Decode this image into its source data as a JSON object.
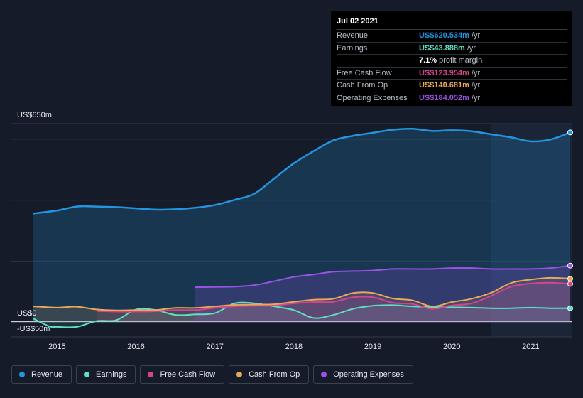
{
  "tooltip": {
    "date": "Jul 02 2021",
    "rows": [
      {
        "label": "Revenue",
        "value": "US$620.534m",
        "unit": "/yr",
        "color": "#2394df"
      },
      {
        "label": "Earnings",
        "value": "US$43.888m",
        "unit": "/yr",
        "color": "#5ee0c6"
      },
      {
        "label": "",
        "value": "7.1%",
        "unit": "profit margin",
        "color": "#ffffff"
      },
      {
        "label": "Free Cash Flow",
        "value": "US$123.954m",
        "unit": "/yr",
        "color": "#d3468c"
      },
      {
        "label": "Cash From Op",
        "value": "US$140.681m",
        "unit": "/yr",
        "color": "#e8a857"
      },
      {
        "label": "Operating Expenses",
        "value": "US$184.052m",
        "unit": "/yr",
        "color": "#9b52e8"
      }
    ]
  },
  "y_axis": {
    "top_label": "US$650m",
    "zero_label": "US$0",
    "bottom_label": "-US$50m"
  },
  "legend": [
    {
      "label": "Revenue",
      "color": "#2394df"
    },
    {
      "label": "Earnings",
      "color": "#5ee0c6"
    },
    {
      "label": "Free Cash Flow",
      "color": "#d3468c"
    },
    {
      "label": "Cash From Op",
      "color": "#e8a857"
    },
    {
      "label": "Operating Expenses",
      "color": "#9b52e8"
    }
  ],
  "chart_data": {
    "type": "area",
    "ylim": [
      -50,
      650
    ],
    "x_ticks": [
      "2015",
      "2016",
      "2017",
      "2018",
      "2019",
      "2020",
      "2021"
    ],
    "highlight_start": 2020.5,
    "series": [
      {
        "name": "Revenue",
        "color": "#2394df",
        "points": [
          [
            2014.7,
            355
          ],
          [
            2015.0,
            365
          ],
          [
            2015.25,
            378
          ],
          [
            2015.5,
            378
          ],
          [
            2015.75,
            376
          ],
          [
            2016.0,
            372
          ],
          [
            2016.25,
            368
          ],
          [
            2016.5,
            369
          ],
          [
            2016.75,
            374
          ],
          [
            2017.0,
            383
          ],
          [
            2017.25,
            400
          ],
          [
            2017.5,
            420
          ],
          [
            2017.75,
            470
          ],
          [
            2018.0,
            520
          ],
          [
            2018.25,
            560
          ],
          [
            2018.5,
            595
          ],
          [
            2018.75,
            610
          ],
          [
            2019.0,
            620
          ],
          [
            2019.25,
            630
          ],
          [
            2019.5,
            633
          ],
          [
            2019.75,
            626
          ],
          [
            2020.0,
            628
          ],
          [
            2020.25,
            625
          ],
          [
            2020.5,
            615
          ],
          [
            2020.75,
            605
          ],
          [
            2021.0,
            592
          ],
          [
            2021.25,
            598
          ],
          [
            2021.5,
            621
          ]
        ]
      },
      {
        "name": "Earnings",
        "color": "#5ee0c6",
        "points": [
          [
            2014.7,
            10
          ],
          [
            2014.9,
            -15
          ],
          [
            2015.0,
            -17
          ],
          [
            2015.25,
            -17
          ],
          [
            2015.5,
            2
          ],
          [
            2015.75,
            5
          ],
          [
            2016.0,
            40
          ],
          [
            2016.25,
            38
          ],
          [
            2016.5,
            22
          ],
          [
            2016.75,
            24
          ],
          [
            2017.0,
            28
          ],
          [
            2017.25,
            60
          ],
          [
            2017.5,
            60
          ],
          [
            2017.75,
            50
          ],
          [
            2018.0,
            38
          ],
          [
            2018.25,
            12
          ],
          [
            2018.5,
            22
          ],
          [
            2018.75,
            42
          ],
          [
            2019.0,
            52
          ],
          [
            2019.25,
            54
          ],
          [
            2019.5,
            50
          ],
          [
            2019.75,
            48
          ],
          [
            2020.0,
            47
          ],
          [
            2020.25,
            46
          ],
          [
            2020.5,
            44
          ],
          [
            2020.75,
            44
          ],
          [
            2021.0,
            46
          ],
          [
            2021.25,
            44
          ],
          [
            2021.5,
            44
          ]
        ]
      },
      {
        "name": "Free Cash Flow",
        "color": "#d3468c",
        "points": [
          [
            2015.5,
            35
          ],
          [
            2015.75,
            33
          ],
          [
            2016.0,
            33
          ],
          [
            2016.25,
            34
          ],
          [
            2016.5,
            38
          ],
          [
            2016.75,
            38
          ],
          [
            2017.0,
            45
          ],
          [
            2017.25,
            50
          ],
          [
            2017.5,
            52
          ],
          [
            2017.75,
            53
          ],
          [
            2018.0,
            60
          ],
          [
            2018.25,
            64
          ],
          [
            2018.5,
            65
          ],
          [
            2018.75,
            80
          ],
          [
            2019.0,
            80
          ],
          [
            2019.25,
            62
          ],
          [
            2019.5,
            58
          ],
          [
            2019.75,
            42
          ],
          [
            2020.0,
            53
          ],
          [
            2020.25,
            60
          ],
          [
            2020.5,
            85
          ],
          [
            2020.75,
            115
          ],
          [
            2021.0,
            125
          ],
          [
            2021.25,
            128
          ],
          [
            2021.5,
            124
          ]
        ]
      },
      {
        "name": "Cash From Op",
        "color": "#e8a857",
        "points": [
          [
            2014.7,
            50
          ],
          [
            2015.0,
            46
          ],
          [
            2015.25,
            49
          ],
          [
            2015.5,
            40
          ],
          [
            2015.75,
            37
          ],
          [
            2016.0,
            38
          ],
          [
            2016.25,
            38
          ],
          [
            2016.5,
            45
          ],
          [
            2016.75,
            45
          ],
          [
            2017.0,
            50
          ],
          [
            2017.25,
            55
          ],
          [
            2017.5,
            56
          ],
          [
            2017.75,
            57
          ],
          [
            2018.0,
            65
          ],
          [
            2018.25,
            72
          ],
          [
            2018.5,
            75
          ],
          [
            2018.75,
            94
          ],
          [
            2019.0,
            94
          ],
          [
            2019.25,
            76
          ],
          [
            2019.5,
            70
          ],
          [
            2019.75,
            50
          ],
          [
            2020.0,
            64
          ],
          [
            2020.25,
            75
          ],
          [
            2020.5,
            95
          ],
          [
            2020.75,
            127
          ],
          [
            2021.0,
            138
          ],
          [
            2021.25,
            144
          ],
          [
            2021.5,
            141
          ]
        ]
      },
      {
        "name": "Operating Expenses",
        "color": "#9b52e8",
        "points": [
          [
            2016.75,
            113
          ],
          [
            2017.0,
            114
          ],
          [
            2017.25,
            115
          ],
          [
            2017.5,
            120
          ],
          [
            2017.75,
            133
          ],
          [
            2018.0,
            147
          ],
          [
            2018.25,
            155
          ],
          [
            2018.5,
            164
          ],
          [
            2018.75,
            166
          ],
          [
            2019.0,
            168
          ],
          [
            2019.25,
            173
          ],
          [
            2019.5,
            173
          ],
          [
            2019.75,
            173
          ],
          [
            2020.0,
            176
          ],
          [
            2020.25,
            176
          ],
          [
            2020.5,
            173
          ],
          [
            2020.75,
            173
          ],
          [
            2021.0,
            173
          ],
          [
            2021.25,
            176
          ],
          [
            2021.5,
            184
          ]
        ]
      }
    ]
  }
}
